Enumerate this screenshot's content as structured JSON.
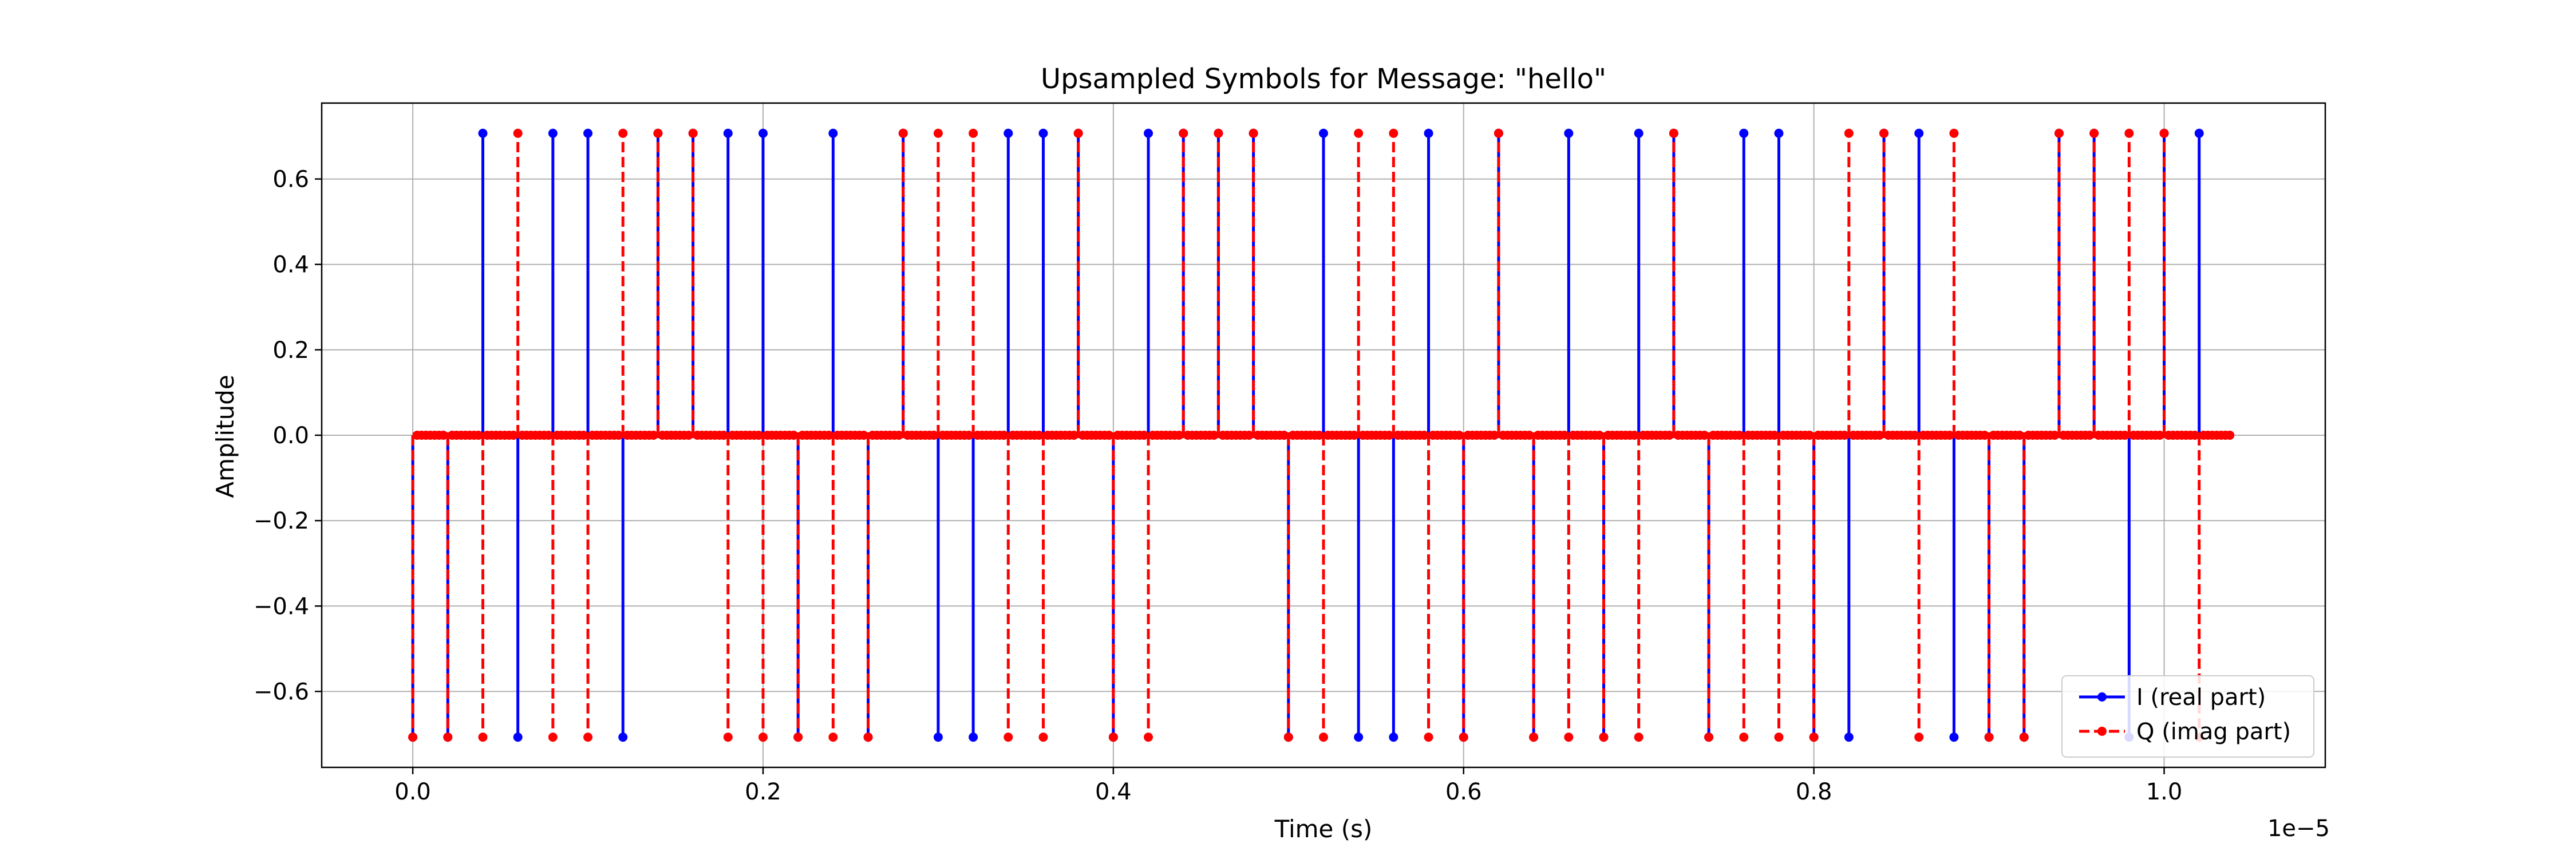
{
  "chart_data": {
    "type": "stem",
    "title": "Upsampled Symbols for Message: \"hello\"",
    "xlabel": "Time (s)",
    "ylabel": "Amplitude",
    "x_scale_label": "1e−5",
    "x_unit_multiplier": 1e-05,
    "xlim": [
      -0.052,
      1.092
    ],
    "ylim": [
      -0.7778,
      0.7778
    ],
    "xticks": [
      0.0,
      0.2,
      0.4,
      0.6,
      0.8,
      1.0
    ],
    "xtick_labels": [
      "0.0",
      "0.2",
      "0.4",
      "0.6",
      "0.8",
      "1.0"
    ],
    "yticks": [
      -0.6,
      -0.4,
      -0.2,
      0.0,
      0.2,
      0.4,
      0.6
    ],
    "ytick_labels": [
      "−0.6",
      "−0.4",
      "−0.2",
      "0.0",
      "0.2",
      "0.4",
      "0.6"
    ],
    "grid": true,
    "legend_position": "lower-right",
    "symbol_spacing": 0.02,
    "samples_per_symbol": 8,
    "symbol_count": 52,
    "series": [
      {
        "name": "I (real part)",
        "color": "#0000ff",
        "linestyle": "solid",
        "marker": "dot",
        "symbol_values": [
          -0.7071,
          -0.7071,
          0.7071,
          -0.7071,
          0.7071,
          0.7071,
          -0.7071,
          0.7071,
          0.7071,
          0.7071,
          0.7071,
          -0.7071,
          0.7071,
          -0.7071,
          0.7071,
          -0.7071,
          -0.7071,
          0.7071,
          0.7071,
          0.7071,
          -0.7071,
          0.7071,
          0.7071,
          0.7071,
          0.7071,
          -0.7071,
          0.7071,
          -0.7071,
          -0.7071,
          0.7071,
          -0.7071,
          0.7071,
          -0.7071,
          0.7071,
          -0.7071,
          0.7071,
          0.7071,
          -0.7071,
          0.7071,
          0.7071,
          -0.7071,
          -0.7071,
          0.7071,
          0.7071,
          -0.7071,
          -0.7071,
          -0.7071,
          0.7071,
          0.7071,
          -0.7071,
          0.7071,
          0.7071
        ]
      },
      {
        "name": "Q (imag part)",
        "color": "#ff0000",
        "linestyle": "dashed",
        "marker": "dot",
        "symbol_values": [
          -0.7071,
          -0.7071,
          -0.7071,
          0.7071,
          -0.7071,
          -0.7071,
          0.7071,
          0.7071,
          0.7071,
          -0.7071,
          -0.7071,
          -0.7071,
          -0.7071,
          -0.7071,
          0.7071,
          0.7071,
          0.7071,
          -0.7071,
          -0.7071,
          0.7071,
          -0.7071,
          -0.7071,
          0.7071,
          0.7071,
          0.7071,
          -0.7071,
          -0.7071,
          0.7071,
          0.7071,
          -0.7071,
          -0.7071,
          0.7071,
          -0.7071,
          -0.7071,
          -0.7071,
          -0.7071,
          0.7071,
          -0.7071,
          -0.7071,
          -0.7071,
          -0.7071,
          0.7071,
          0.7071,
          -0.7071,
          0.7071,
          -0.7071,
          -0.7071,
          0.7071,
          0.7071,
          0.7071,
          0.7071,
          -0.7071
        ]
      }
    ]
  }
}
